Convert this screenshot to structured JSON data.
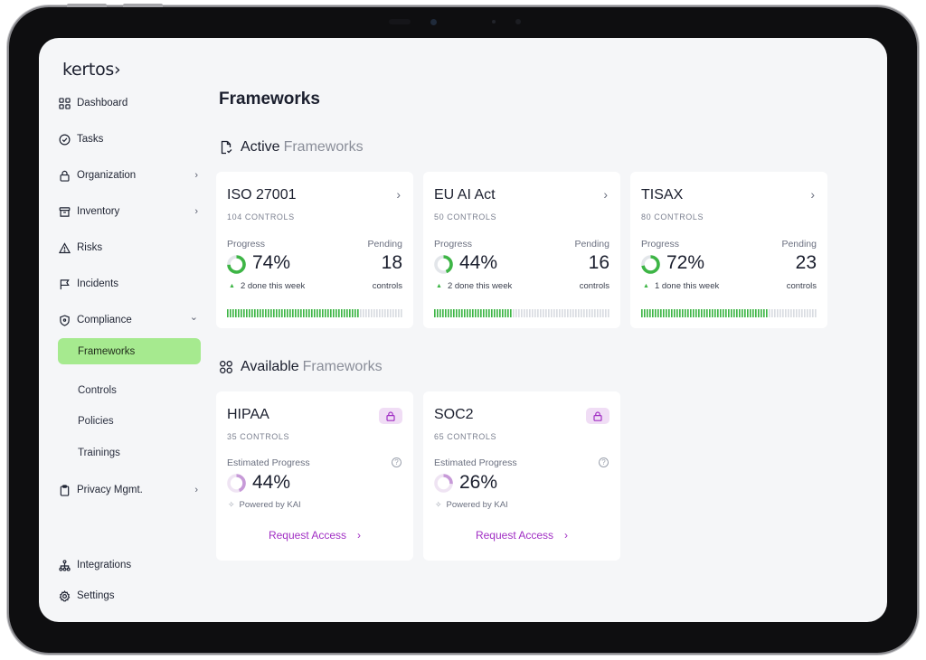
{
  "app": {
    "logo": "kertos›"
  },
  "sidebar": {
    "items": [
      {
        "label": "Dashboard",
        "icon": "grid-icon"
      },
      {
        "label": "Tasks",
        "icon": "check-circle-icon"
      },
      {
        "label": "Organization",
        "icon": "lock-icon",
        "chevron": "›"
      },
      {
        "label": "Inventory",
        "icon": "archive-icon",
        "chevron": "›"
      },
      {
        "label": "Risks",
        "icon": "warning-icon"
      },
      {
        "label": "Incidents",
        "icon": "flag-icon"
      },
      {
        "label": "Compliance",
        "icon": "shield-icon",
        "chevron": "⌄"
      }
    ],
    "sub_items": [
      {
        "label": "Frameworks",
        "active": true
      },
      {
        "label": "Controls"
      },
      {
        "label": "Policies"
      },
      {
        "label": "Trainings"
      }
    ],
    "privacy": {
      "label": "Privacy Mgmt.",
      "icon": "clipboard-icon",
      "chevron": "›"
    },
    "bottom": [
      {
        "label": "Integrations",
        "icon": "sitemap-icon"
      },
      {
        "label": "Settings",
        "icon": "gear-icon"
      }
    ]
  },
  "main": {
    "title": "Frameworks",
    "active_section": {
      "title": "Active",
      "muted": "Frameworks"
    },
    "available_section": {
      "title": "Available",
      "muted": "Frameworks"
    },
    "active_frameworks": [
      {
        "name": "ISO 27001",
        "controls": "104 CONTROLS",
        "progress_label": "Progress",
        "progress": "74%",
        "progress_value": 0.74,
        "week": "2 done this week",
        "pending_label": "Pending",
        "pending": "18",
        "pending_unit": "controls"
      },
      {
        "name": "EU AI Act",
        "controls": "50 CONTROLS",
        "progress_label": "Progress",
        "progress": "44%",
        "progress_value": 0.44,
        "week": "2 done this week",
        "pending_label": "Pending",
        "pending": "16",
        "pending_unit": "controls"
      },
      {
        "name": "TISAX",
        "controls": "80 CONTROLS",
        "progress_label": "Progress",
        "progress": "72%",
        "progress_value": 0.72,
        "week": "1 done this week",
        "pending_label": "Pending",
        "pending": "23",
        "pending_unit": "controls"
      }
    ],
    "available_frameworks": [
      {
        "name": "HIPAA",
        "controls": "35 CONTROLS",
        "estimated_label": "Estimated Progress",
        "estimated": "44%",
        "estimated_value": 0.44,
        "powered": "Powered by KAI",
        "action": "Request Access"
      },
      {
        "name": "SOC2",
        "controls": "65 CONTROLS",
        "estimated_label": "Estimated Progress",
        "estimated": "26%",
        "estimated_value": 0.26,
        "powered": "Powered by KAI",
        "action": "Request Access"
      }
    ]
  },
  "colors": {
    "accent_green": "#3db545",
    "active_nav": "#a6ea8f",
    "purple": "#a12fc4",
    "ring_purple": "#c79ad8"
  }
}
